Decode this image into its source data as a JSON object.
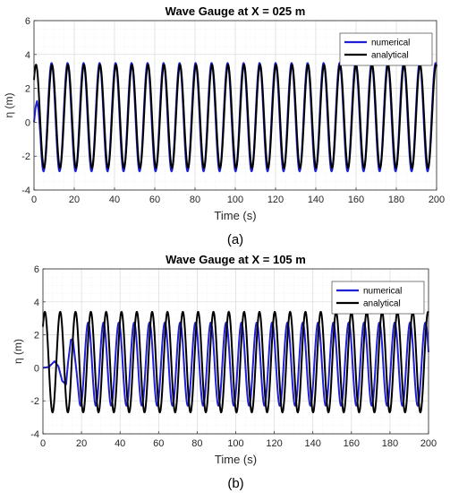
{
  "chart_data": [
    {
      "type": "line",
      "title": "Wave Gauge at X = 025 m",
      "xlabel": "Time (s)",
      "ylabel": "η (m)",
      "panel_label": "(a)",
      "xlim": [
        0,
        200
      ],
      "ylim": [
        -4,
        6
      ],
      "xticks": [
        0,
        20,
        40,
        60,
        80,
        100,
        120,
        140,
        160,
        180,
        200
      ],
      "yticks": [
        -4,
        -2,
        0,
        2,
        4,
        6
      ],
      "grid": true,
      "minor_grid": true,
      "legend_position": "top-right",
      "series": [
        {
          "name": "numerical",
          "color": "#1f1fd6",
          "kind": "oscillation",
          "period": 7.95,
          "max": 3.5,
          "min": -2.9,
          "initial_points": [
            [
              0,
              0
            ],
            [
              0.8,
              0.9
            ],
            [
              1.5,
              1.25
            ],
            [
              2.3,
              0.7
            ],
            [
              3.2,
              -0.8
            ]
          ]
        },
        {
          "name": "analytical",
          "color": "#000000",
          "kind": "oscillation",
          "period": 7.95,
          "max": 3.4,
          "min": -2.7
        }
      ]
    },
    {
      "type": "line",
      "title": "Wave Gauge at X = 105 m",
      "xlabel": "Time (s)",
      "ylabel": "η (m)",
      "panel_label": "(b)",
      "xlim": [
        0,
        200
      ],
      "ylim": [
        -4,
        6
      ],
      "xticks": [
        0,
        20,
        40,
        60,
        80,
        100,
        120,
        140,
        160,
        180,
        200
      ],
      "yticks": [
        -4,
        -2,
        0,
        2,
        4,
        6
      ],
      "grid": true,
      "minor_grid": true,
      "legend_position": "top-right",
      "series": [
        {
          "name": "numerical",
          "color": "#1f1fd6",
          "kind": "oscillation",
          "period": 7.95,
          "max": 2.75,
          "min": -2.3,
          "initial_points": [
            [
              0,
              0
            ],
            [
              3,
              0.05
            ],
            [
              6,
              0.4
            ],
            [
              8,
              0.1
            ],
            [
              10,
              -0.8
            ],
            [
              12,
              -1.0
            ],
            [
              13,
              0.3
            ],
            [
              14.5,
              1.7
            ],
            [
              15.5,
              1.75
            ],
            [
              17.5,
              -0.3
            ],
            [
              19,
              -2.1
            ]
          ]
        },
        {
          "name": "analytical",
          "color": "#000000",
          "kind": "oscillation",
          "period": 7.95,
          "max": 3.4,
          "min": -2.7
        }
      ]
    }
  ]
}
